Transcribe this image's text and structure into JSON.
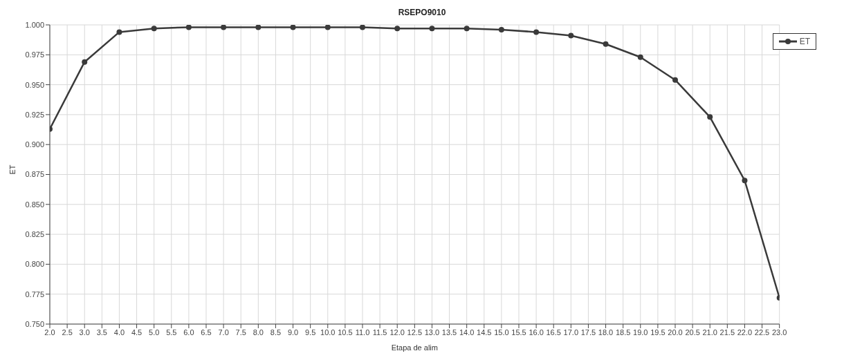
{
  "chart_data": {
    "type": "line",
    "title": "RSEPO9010",
    "xlabel": "Etapa de alim",
    "ylabel": "ET",
    "x": [
      2,
      3,
      4,
      5,
      6,
      7,
      8,
      9,
      10,
      11,
      12,
      13,
      14,
      15,
      16,
      17,
      18,
      19,
      20,
      21,
      22,
      23
    ],
    "series": [
      {
        "name": "ET",
        "color": "#3a3a3a",
        "values": [
          0.913,
          0.969,
          0.994,
          0.997,
          0.998,
          0.998,
          0.998,
          0.998,
          0.998,
          0.998,
          0.997,
          0.997,
          0.997,
          0.996,
          0.994,
          0.991,
          0.984,
          0.973,
          0.954,
          0.923,
          0.87,
          0.772
        ]
      }
    ],
    "xlim": [
      2,
      23
    ],
    "xticks": [
      {
        "value": 2,
        "label": "2.0"
      },
      {
        "value": 2.5,
        "label": "2.5"
      },
      {
        "value": 3,
        "label": "3.0"
      },
      {
        "value": 3.5,
        "label": "3.5"
      },
      {
        "value": 4,
        "label": "4.0"
      },
      {
        "value": 4.5,
        "label": "4.5"
      },
      {
        "value": 5,
        "label": "5.0"
      },
      {
        "value": 5.5,
        "label": "5.5"
      },
      {
        "value": 6,
        "label": "6.0"
      },
      {
        "value": 6.5,
        "label": "6.5"
      },
      {
        "value": 7,
        "label": "7.0"
      },
      {
        "value": 7.5,
        "label": "7.5"
      },
      {
        "value": 8,
        "label": "8.0"
      },
      {
        "value": 8.5,
        "label": "8.5"
      },
      {
        "value": 9,
        "label": "9.0"
      },
      {
        "value": 9.5,
        "label": "9.5"
      },
      {
        "value": 10,
        "label": "10.0"
      },
      {
        "value": 10.5,
        "label": "10.5"
      },
      {
        "value": 11,
        "label": "11.0"
      },
      {
        "value": 11.5,
        "label": "11.5"
      },
      {
        "value": 12,
        "label": "12.0"
      },
      {
        "value": 12.5,
        "label": "12.5"
      },
      {
        "value": 13,
        "label": "13.0"
      },
      {
        "value": 13.5,
        "label": "13.5"
      },
      {
        "value": 14,
        "label": "14.0"
      },
      {
        "value": 14.5,
        "label": "14.5"
      },
      {
        "value": 15,
        "label": "15.0"
      },
      {
        "value": 15.5,
        "label": "15.5"
      },
      {
        "value": 16,
        "label": "16.0"
      },
      {
        "value": 16.5,
        "label": "16.5"
      },
      {
        "value": 17,
        "label": "17.0"
      },
      {
        "value": 17.5,
        "label": "17.5"
      },
      {
        "value": 18,
        "label": "18.0"
      },
      {
        "value": 18.5,
        "label": "18.5"
      },
      {
        "value": 19,
        "label": "19.0"
      },
      {
        "value": 19.5,
        "label": "19.5"
      },
      {
        "value": 20,
        "label": "20.0"
      },
      {
        "value": 20.5,
        "label": "20.5"
      },
      {
        "value": 21,
        "label": "21.0"
      },
      {
        "value": 21.5,
        "label": "21.5"
      },
      {
        "value": 22,
        "label": "22.0"
      },
      {
        "value": 22.5,
        "label": "22.5"
      },
      {
        "value": 23,
        "label": "23.0"
      }
    ],
    "ylim": [
      0.75,
      1.0
    ],
    "yticks": [
      {
        "value": 0.75,
        "label": "0.750"
      },
      {
        "value": 0.775,
        "label": "0.775"
      },
      {
        "value": 0.8,
        "label": "0.800"
      },
      {
        "value": 0.825,
        "label": "0.825"
      },
      {
        "value": 0.85,
        "label": "0.850"
      },
      {
        "value": 0.875,
        "label": "0.875"
      },
      {
        "value": 0.9,
        "label": "0.900"
      },
      {
        "value": 0.925,
        "label": "0.925"
      },
      {
        "value": 0.95,
        "label": "0.950"
      },
      {
        "value": 0.975,
        "label": "0.975"
      },
      {
        "value": 1.0,
        "label": "1.000"
      }
    ],
    "grid": true,
    "legend": "top right",
    "marker": "circle",
    "line_style": "solid"
  }
}
